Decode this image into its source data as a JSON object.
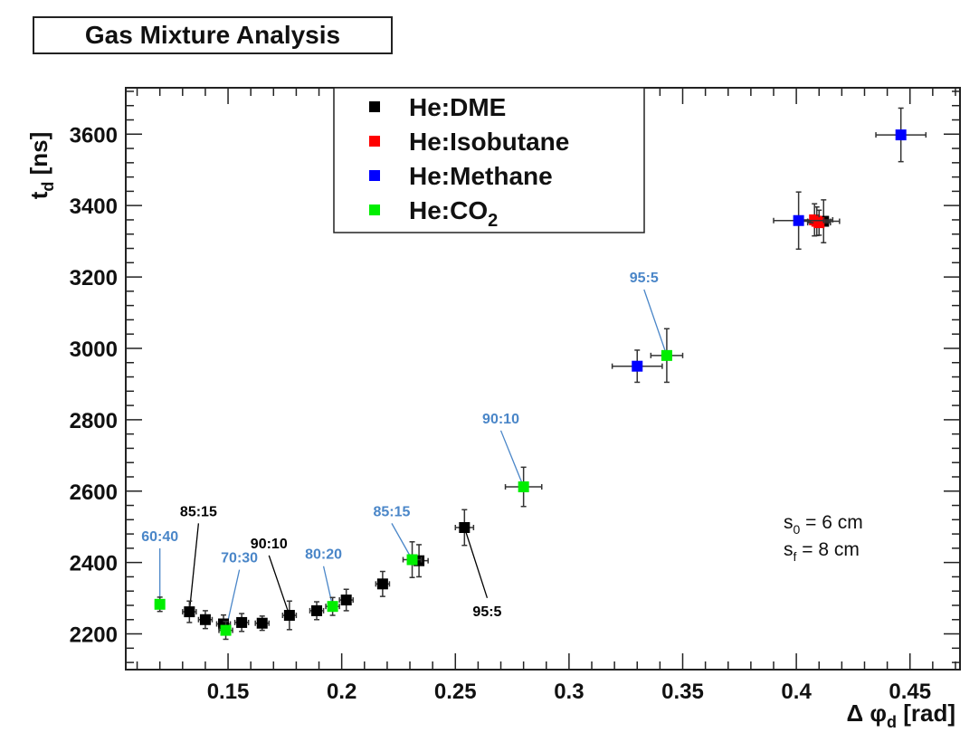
{
  "chart_data": {
    "type": "scatter",
    "title": "Gas Mixture Analysis",
    "xlabel": "Δ φ",
    "xlabel_sub": "d",
    "xlabel_unit": "[rad]",
    "ylabel": "t",
    "ylabel_sub": "d",
    "ylabel_unit": "[ns]",
    "xlim": [
      0.105,
      0.472
    ],
    "ylim": [
      2100,
      3730
    ],
    "xticks": [
      0.15,
      0.2,
      0.25,
      0.3,
      0.35,
      0.4,
      0.45
    ],
    "xtick_labels": [
      "0.15",
      "0.2",
      "0.25",
      "0.3",
      "0.35",
      "0.4",
      "0.45"
    ],
    "yticks": [
      2200,
      2400,
      2600,
      2800,
      3000,
      3200,
      3400,
      3600
    ],
    "ytick_labels": [
      "2200",
      "2400",
      "2600",
      "2800",
      "3000",
      "3200",
      "3400",
      "3600"
    ],
    "grid": false,
    "legend_position": "top-center",
    "series": [
      {
        "name": "He:DME",
        "label_parts": [
          "He:DME"
        ],
        "color": "#000000",
        "points": [
          {
            "x": 0.133,
            "y": 2262,
            "xerr": 0.003,
            "yerr": 30
          },
          {
            "x": 0.14,
            "y": 2240,
            "xerr": 0.003,
            "yerr": 25
          },
          {
            "x": 0.148,
            "y": 2228,
            "xerr": 0.003,
            "yerr": 25
          },
          {
            "x": 0.156,
            "y": 2232,
            "xerr": 0.003,
            "yerr": 25
          },
          {
            "x": 0.165,
            "y": 2230,
            "xerr": 0.003,
            "yerr": 20
          },
          {
            "x": 0.177,
            "y": 2252,
            "xerr": 0.003,
            "yerr": 40
          },
          {
            "x": 0.189,
            "y": 2265,
            "xerr": 0.003,
            "yerr": 25
          },
          {
            "x": 0.202,
            "y": 2295,
            "xerr": 0.003,
            "yerr": 30
          },
          {
            "x": 0.218,
            "y": 2340,
            "xerr": 0.003,
            "yerr": 35
          },
          {
            "x": 0.234,
            "y": 2405,
            "xerr": 0.004,
            "yerr": 45
          },
          {
            "x": 0.254,
            "y": 2498,
            "xerr": 0.004,
            "yerr": 50
          },
          {
            "x": 0.412,
            "y": 3356,
            "xerr": 0.007,
            "yerr": 60
          }
        ]
      },
      {
        "name": "He:Isobutane",
        "label_parts": [
          "He:Isobutane"
        ],
        "color": "#ff0000",
        "points": [
          {
            "x": 0.408,
            "y": 3360,
            "xerr": 0.008,
            "yerr": 45
          },
          {
            "x": 0.409,
            "y": 3356,
            "xerr": 0.006,
            "yerr": 40
          },
          {
            "x": 0.41,
            "y": 3352,
            "xerr": 0.005,
            "yerr": 35
          }
        ]
      },
      {
        "name": "He:Methane",
        "label_parts": [
          "He:Methane"
        ],
        "color": "#0000ff",
        "points": [
          {
            "x": 0.33,
            "y": 2950,
            "xerr": 0.011,
            "yerr": 45
          },
          {
            "x": 0.401,
            "y": 3358,
            "xerr": 0.011,
            "yerr": 80
          },
          {
            "x": 0.446,
            "y": 3598,
            "xerr": 0.011,
            "yerr": 75
          }
        ]
      },
      {
        "name": "He:CO2",
        "label_parts": [
          "He:CO",
          "2"
        ],
        "color": "#00ee00",
        "points": [
          {
            "x": 0.12,
            "y": 2283,
            "xerr": 0.002,
            "yerr": 20
          },
          {
            "x": 0.149,
            "y": 2210,
            "xerr": 0.003,
            "yerr": 25
          },
          {
            "x": 0.196,
            "y": 2277,
            "xerr": 0.003,
            "yerr": 25
          },
          {
            "x": 0.231,
            "y": 2408,
            "xerr": 0.004,
            "yerr": 50
          },
          {
            "x": 0.28,
            "y": 2612,
            "xerr": 0.008,
            "yerr": 55
          },
          {
            "x": 0.343,
            "y": 2980,
            "xerr": 0.007,
            "yerr": 75
          }
        ]
      }
    ],
    "annotations": [
      {
        "text": "60:40",
        "color": "#4a86c8",
        "x": 0.12,
        "y": 2283,
        "label_x": 0.12,
        "label_y": 2460
      },
      {
        "text": "85:15",
        "color": "#000000",
        "x": 0.133,
        "y": 2262,
        "label_x": 0.137,
        "label_y": 2530
      },
      {
        "text": "70:30",
        "color": "#4a86c8",
        "x": 0.149,
        "y": 2210,
        "label_x": 0.155,
        "label_y": 2400
      },
      {
        "text": "90:10",
        "color": "#000000",
        "x": 0.177,
        "y": 2252,
        "label_x": 0.168,
        "label_y": 2440
      },
      {
        "text": "80:20",
        "color": "#4a86c8",
        "x": 0.196,
        "y": 2277,
        "label_x": 0.192,
        "label_y": 2410
      },
      {
        "text": "85:15",
        "color": "#4a86c8",
        "x": 0.231,
        "y": 2408,
        "label_x": 0.222,
        "label_y": 2530
      },
      {
        "text": "95:5",
        "color": "#000000",
        "x": 0.254,
        "y": 2498,
        "label_x": 0.264,
        "label_y": 2250
      },
      {
        "text": "90:10",
        "color": "#4a86c8",
        "x": 0.28,
        "y": 2612,
        "label_x": 0.27,
        "label_y": 2790
      },
      {
        "text": "95:5",
        "color": "#4a86c8",
        "x": 0.343,
        "y": 2980,
        "label_x": 0.333,
        "label_y": 3185
      }
    ],
    "parameters": [
      {
        "pre": "s",
        "sub": "0",
        "post": " = 6 cm"
      },
      {
        "pre": "s",
        "sub": "f",
        "post": " = 8 cm"
      }
    ]
  }
}
